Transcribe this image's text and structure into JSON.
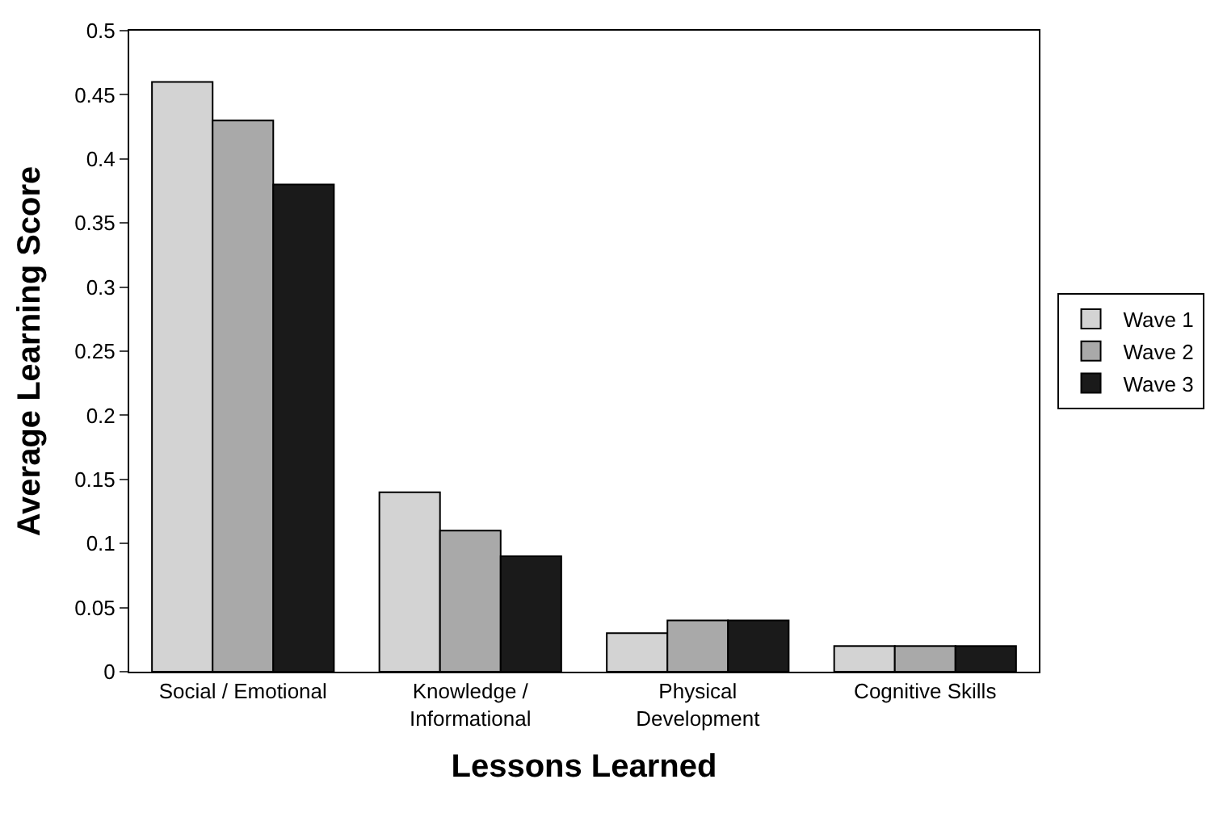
{
  "chart_data": {
    "type": "bar",
    "xlabel": "Lessons Learned",
    "ylabel": "Average Learning Score",
    "categories": [
      "Social / Emotional",
      "Knowledge /\nInformational",
      "Physical\nDevelopment",
      "Cognitive Skills"
    ],
    "series": [
      {
        "name": "Wave 1",
        "color": "#d3d3d3",
        "values": [
          0.46,
          0.14,
          0.03,
          0.02
        ]
      },
      {
        "name": "Wave 2",
        "color": "#a9a9a9",
        "values": [
          0.43,
          0.11,
          0.04,
          0.02
        ]
      },
      {
        "name": "Wave 3",
        "color": "#1a1a1a",
        "values": [
          0.38,
          0.09,
          0.04,
          0.02
        ]
      }
    ],
    "ylim": [
      0,
      0.5
    ],
    "yticks": [
      0,
      0.05,
      0.1,
      0.15,
      0.2,
      0.25,
      0.3,
      0.35,
      0.4,
      0.45,
      0.5
    ],
    "legend": "right"
  }
}
